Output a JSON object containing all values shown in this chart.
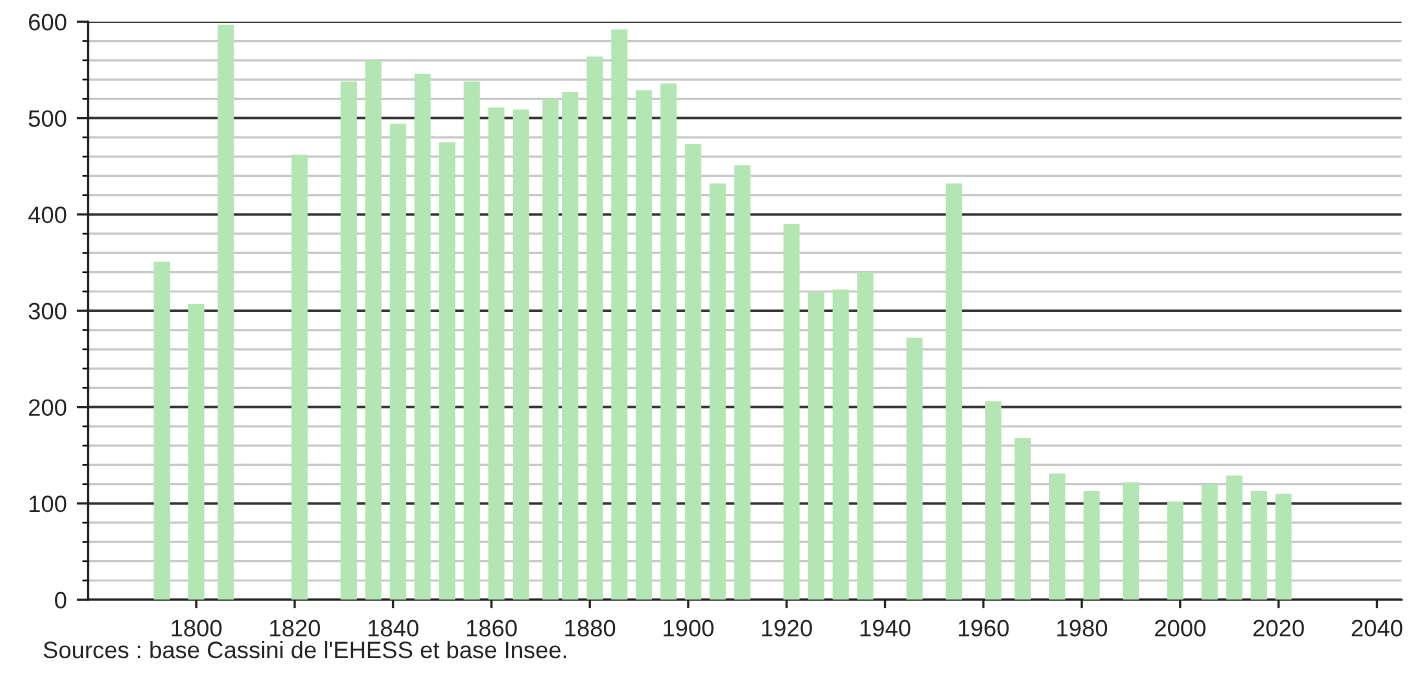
{
  "chart_data": {
    "type": "bar",
    "x": [
      1793,
      1800,
      1806,
      1821,
      1831,
      1836,
      1841,
      1846,
      1851,
      1856,
      1861,
      1866,
      1872,
      1876,
      1881,
      1886,
      1891,
      1896,
      1901,
      1906,
      1911,
      1921,
      1926,
      1931,
      1936,
      1946,
      1954,
      1962,
      1968,
      1975,
      1982,
      1990,
      1999,
      2006,
      2011,
      2016,
      2021
    ],
    "values": [
      351,
      307,
      597,
      462,
      538,
      560,
      494,
      546,
      475,
      538,
      511,
      509,
      520,
      527,
      564,
      592,
      529,
      536,
      473,
      432,
      451,
      390,
      320,
      322,
      340,
      272,
      432,
      206,
      168,
      131,
      113,
      122,
      102,
      120,
      129,
      113,
      110
    ],
    "color": "#b3e6b3",
    "xlim": [
      1778,
      2045
    ],
    "xticks": [
      1800,
      1820,
      1840,
      1860,
      1880,
      1900,
      1920,
      1940,
      1960,
      1980,
      2000,
      2020,
      2040
    ],
    "ylim": [
      0,
      600
    ],
    "yticks": [
      0,
      100,
      200,
      300,
      400,
      500,
      600
    ],
    "grid": "y",
    "annotations": [
      "Sources : base Cassini de l'EHESS et base Insee."
    ]
  }
}
